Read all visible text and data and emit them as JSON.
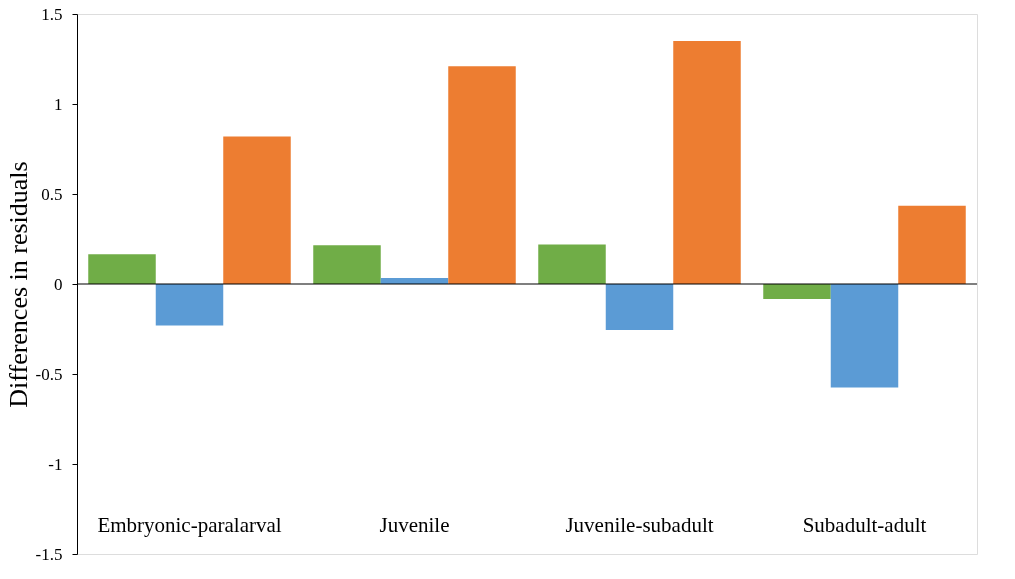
{
  "chart_data": {
    "type": "bar",
    "ylabel": "Differences in residuals",
    "categories": [
      "Embryonic-paralarval",
      "Juvenile",
      "Juvenile-subadult",
      "Subadult-adult"
    ],
    "series": [
      {
        "color": "#70ad47",
        "values": [
          0.165,
          0.215,
          0.22,
          -0.083
        ]
      },
      {
        "color": "#5b9bd5",
        "values": [
          -0.23,
          0.033,
          -0.255,
          -0.575
        ]
      },
      {
        "color": "#ed7d31",
        "values": [
          0.82,
          1.21,
          1.35,
          0.435
        ]
      }
    ],
    "ylim": [
      -1.5,
      1.5
    ],
    "yticks": [
      -1.5,
      -1,
      -0.5,
      0,
      0.5,
      1,
      1.5
    ],
    "ref_lines": [
      {
        "axis": "y",
        "value": 0,
        "color": "#000000"
      }
    ],
    "grid": false
  }
}
